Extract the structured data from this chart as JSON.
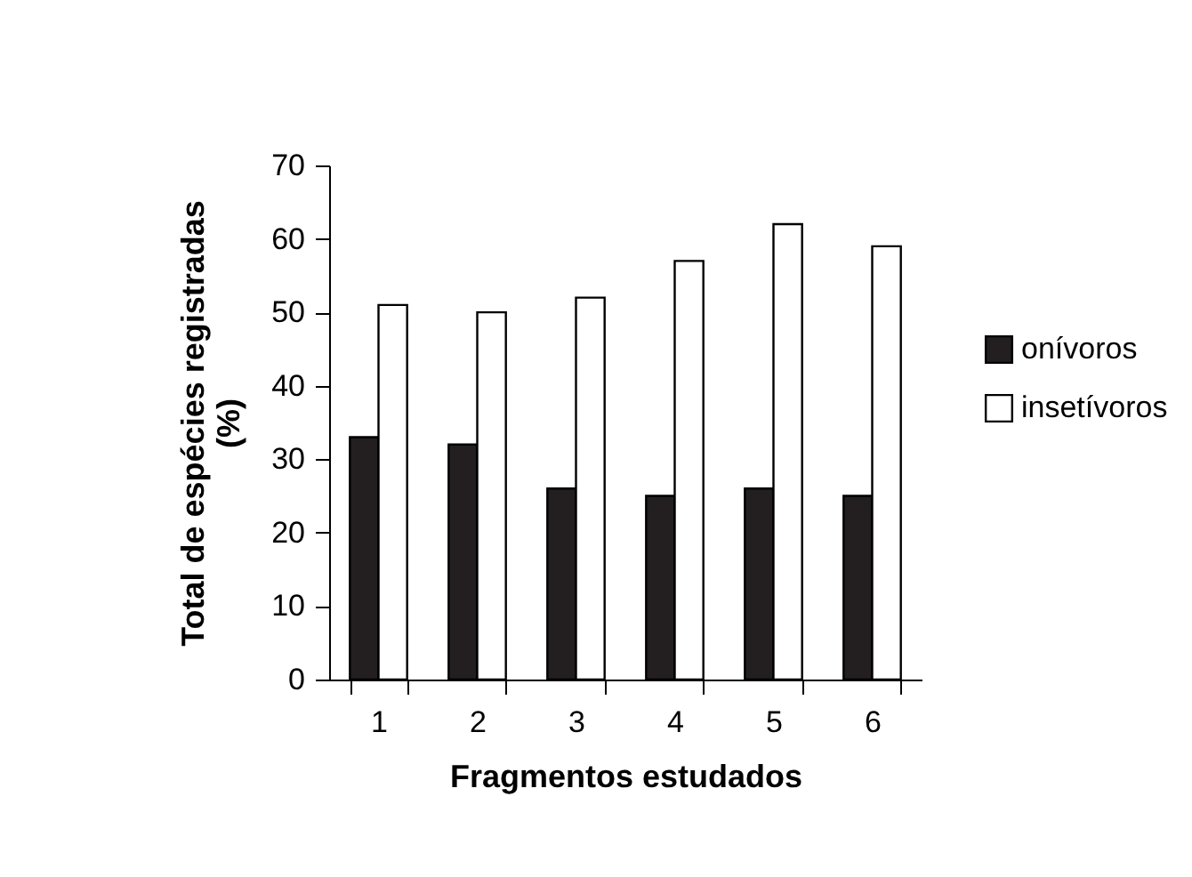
{
  "chart_data": {
    "type": "bar",
    "xlabel": "Fragmentos estudados",
    "ylabel": "Total de espécies registradas (%)",
    "categories": [
      "1",
      "2",
      "3",
      "4",
      "5",
      "6"
    ],
    "series": [
      {
        "name": "onívoros",
        "color": "#231f20",
        "values": [
          33,
          32,
          26,
          25,
          26,
          25
        ]
      },
      {
        "name": "insetívoros",
        "color": "#ffffff",
        "values": [
          51,
          50,
          52,
          57,
          62,
          59
        ]
      }
    ],
    "ylim": [
      0,
      70
    ],
    "yticks": [
      0,
      10,
      20,
      30,
      40,
      50,
      60,
      70
    ],
    "grid": false,
    "legend": "right"
  }
}
